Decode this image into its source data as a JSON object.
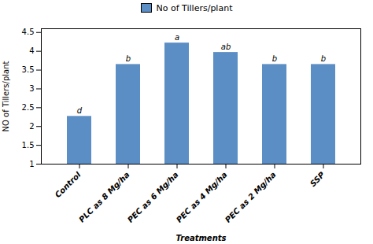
{
  "chart_data": {
    "type": "bar",
    "xlabel": "Treatments",
    "ylabel": "NO of Tillers/plant",
    "categories": [
      "Control",
      "PLC as 8 Mg/ha",
      "PEC as 6 Mg/ha",
      "PEC as 4 Mg/ha",
      "PEC as 2 Mg/ha",
      "SSP"
    ],
    "series": [
      {
        "name": "No of Tillers/plant",
        "color": "#5b8ec4",
        "values": [
          2.27,
          3.65,
          4.22,
          3.97,
          3.65,
          3.65
        ]
      }
    ],
    "letters": [
      "d",
      "b",
      "a",
      "ab",
      "b",
      "b"
    ],
    "ylim": [
      1,
      4.6
    ],
    "yticks": [
      1,
      1.5,
      2,
      2.5,
      3,
      3.5,
      4,
      4.5
    ],
    "legend": "top"
  }
}
